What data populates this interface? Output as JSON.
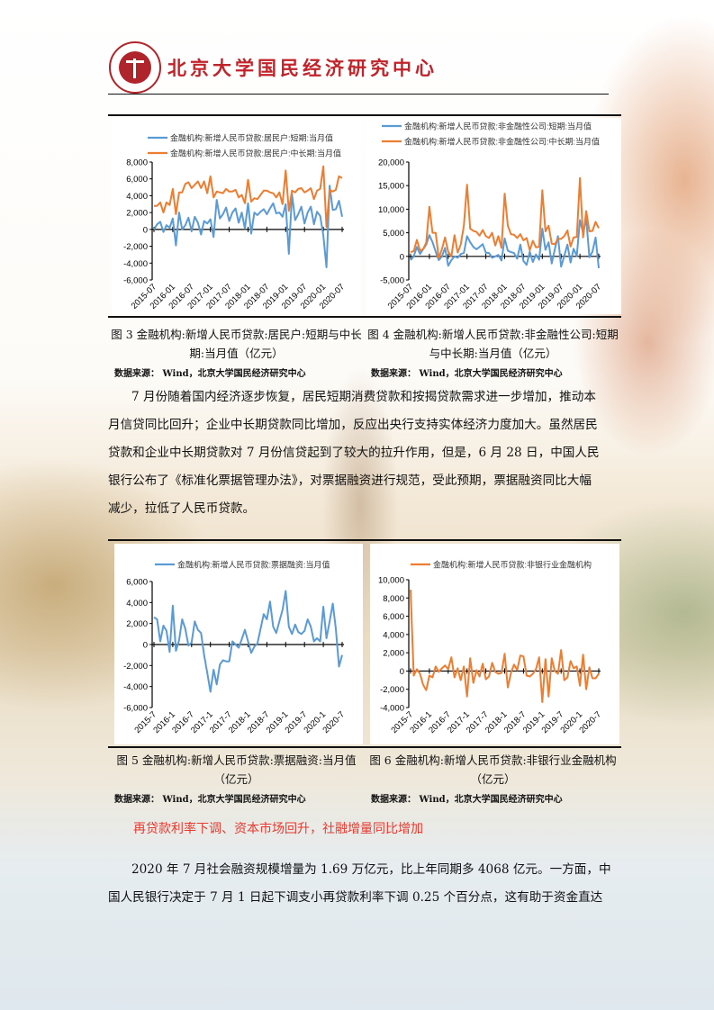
{
  "header": {
    "logo_text": "PEKING UNIVERSITY 1898",
    "brand": "北京大学国民经济研究中心"
  },
  "figures_row1": {
    "fig3": {
      "caption_line1": "图 3  金融机构:新增人民币贷款:居民户:短期与中长",
      "caption_line2": "期:当月值（亿元）",
      "source": "数据来源：  Wind，北京大学国民经济研究中心"
    },
    "fig4": {
      "caption_line1": "图 4  金融机构:新增人民币贷款:非金融性公司:短期",
      "caption_line2": "与中长期:当月值（亿元）",
      "source": "数据来源：  Wind，北京大学国民经济研究中心"
    }
  },
  "paragraph1": [
    "7 月份随着国内经济逐步恢复，居民短期消费贷款和按揭贷款需求进一步增加，推动本",
    "月信贷同比回升；企业中长期贷款同比增加，反应出央行支持实体经济力度加大。虽然居民",
    "贷款和企业中长期贷款对 7 月份信贷起到了较大的拉升作用，但是，6 月 28 日，中国人民",
    "银行公布了《标准化票据管理办法》，对票据融资进行规范，受此预期，票据融资同比大幅",
    "减少，拉低了人民币贷款。"
  ],
  "figures_row2": {
    "fig5": {
      "caption_line1": "图 5  金融机构:新增人民币贷款:票据融资:当月值",
      "caption_line2": "（亿元）",
      "source": "数据来源：  Wind，北京大学国民经济研究中心"
    },
    "fig6": {
      "caption_line1": "图 6  金融机构:新增人民币贷款:非银行业金融机构",
      "caption_line2": "（亿元）",
      "source": "数据来源：  Wind，北京大学国民经济研究中心"
    }
  },
  "section_heading": "再贷款利率下调、资本市场回升，社融增量同比增加",
  "paragraph2": [
    "2020 年 7 月社会融资规模增量为 1.69 万亿元，比上年同期多 4068 亿元。一方面，中",
    "国人民银行决定于 7 月 1 日起下调支小再贷款利率下调 0.25 个百分点，这有助于资金直达"
  ],
  "colors": {
    "blue": "#5b9bd5",
    "orange": "#ed7d31",
    "brand_red": "#c0242a",
    "heading_red": "#e53a2f"
  },
  "chart_data": [
    {
      "type": "line",
      "x_start": "2015-07",
      "x_end": "2020-07",
      "frequency": "monthly",
      "xtick_labels": [
        "2015-07",
        "2016-01",
        "2016-07",
        "2017-01",
        "2017-07",
        "2018-01",
        "2018-07",
        "2019-01",
        "2019-07",
        "2020-01",
        "2020-07"
      ],
      "ylim": [
        -6000,
        8000
      ],
      "yticks": [
        "8,000",
        "6,000",
        "4,000",
        "2,000",
        "0",
        "-2,000",
        "-4,000",
        "-6,000"
      ],
      "legend": "top",
      "series": [
        {
          "name": "金融机构:新增人民币贷款:居民户:短期:当月值",
          "color": "#5b9bd5",
          "values": [
            0,
            600,
            900,
            -300,
            500,
            200,
            1300,
            -1900,
            2000,
            0,
            500,
            1400,
            -200,
            1500,
            800,
            -600,
            1000,
            700,
            1200,
            -900,
            3500,
            1300,
            1800,
            2600,
            1000,
            2000,
            2500,
            800,
            2000,
            100,
            3100,
            -500,
            2000,
            1700,
            2100,
            2400,
            1800,
            2500,
            3100,
            1900,
            2000,
            1500,
            3000,
            -2900,
            4200,
            1100,
            1800,
            2700,
            700,
            2000,
            2700,
            600,
            2100,
            1600,
            -700,
            -4500,
            5200,
            2300,
            2400,
            3400,
            1500
          ]
        },
        {
          "name": "金融机构:新增人民币贷款:居民户:中长期:当月值",
          "color": "#ed7d31",
          "values": [
            2800,
            2800,
            3200,
            2000,
            3200,
            2900,
            4800,
            1800,
            4400,
            4400,
            5400,
            5600,
            4900,
            5300,
            5700,
            4900,
            5700,
            4300,
            6300,
            3800,
            4500,
            4400,
            4300,
            4800,
            4500,
            4500,
            4700,
            3800,
            4100,
            3100,
            5900,
            3300,
            3700,
            3600,
            4100,
            4600,
            4600,
            4400,
            4300,
            3800,
            4400,
            3000,
            7000,
            2200,
            4600,
            4400,
            4800,
            4900,
            4400,
            4600,
            4900,
            3600,
            4600,
            4800,
            7500,
            300,
            4700,
            4500,
            4700,
            6300,
            6100
          ]
        }
      ]
    },
    {
      "type": "line",
      "x_start": "2015-07",
      "x_end": "2020-07",
      "frequency": "monthly",
      "xtick_labels": [
        "2015-07",
        "2016-01",
        "2016-07",
        "2017-01",
        "2017-07",
        "2018-01",
        "2018-07",
        "2019-01",
        "2019-07",
        "2020-01",
        "2020-07"
      ],
      "ylim": [
        -5000,
        20000
      ],
      "yticks": [
        "20,000",
        "15,000",
        "10,000",
        "5,000",
        "0",
        "-5,000"
      ],
      "legend": "top",
      "series": [
        {
          "name": "金融机构:新增人民币贷款:非金融性公司:短期:当月值",
          "color": "#5b9bd5",
          "values": [
            -800,
            0,
            2000,
            500,
            1500,
            2500,
            4500,
            3000,
            1000,
            -800,
            0,
            1800,
            -2000,
            -800,
            0,
            -300,
            500,
            700,
            4300,
            3000,
            2000,
            1500,
            2000,
            2600,
            800,
            700,
            -300,
            0,
            300,
            -900,
            3800,
            1200,
            900,
            700,
            -500,
            2500,
            -1000,
            -1800,
            1000,
            -1200,
            400,
            -700,
            5900,
            1400,
            3000,
            -1500,
            1500,
            4300,
            -2200,
            100,
            2500,
            -1300,
            1600,
            100,
            7700,
            5000,
            8000,
            -200,
            1000,
            4000,
            -2500
          ]
        },
        {
          "name": "金融机构:新增人民币贷款:非金融性公司:中长期:当月值",
          "color": "#ed7d31",
          "values": [
            900,
            1100,
            3500,
            1200,
            1500,
            2900,
            10500,
            5000,
            5000,
            -400,
            1500,
            4000,
            1000,
            0,
            4500,
            800,
            2500,
            6500,
            15200,
            5900,
            5400,
            5200,
            4400,
            5600,
            4300,
            3900,
            5000,
            2300,
            4300,
            1800,
            13300,
            6500,
            4700,
            4600,
            3900,
            4700,
            3400,
            3900,
            1300,
            3300,
            1900,
            2000,
            14000,
            5300,
            6500,
            2700,
            2600,
            3700,
            3700,
            4300,
            5500,
            2100,
            4000,
            4100,
            16600,
            4000,
            9600,
            5300,
            5400,
            7300,
            6000
          ]
        }
      ]
    },
    {
      "type": "line",
      "x_start": "2015-07",
      "x_end": "2020-07",
      "frequency": "monthly",
      "xtick_labels": [
        "2015-7",
        "2016-1",
        "2016-7",
        "2017-1",
        "2017-7",
        "2018-1",
        "2018-7",
        "2019-1",
        "2019-7",
        "2020-1",
        "2020-7"
      ],
      "ylim": [
        -6000,
        6000
      ],
      "yticks": [
        "6,000",
        "4,000",
        "2,000",
        "0",
        "-2,000",
        "-4,000",
        "-6,000"
      ],
      "legend": "top",
      "series": [
        {
          "name": "金融机构:新增人民币贷款:票据融资:当月值",
          "color": "#5b9bd5",
          "values": [
            2600,
            2400,
            300,
            1800,
            1300,
            -700,
            3700,
            -600,
            400,
            2400,
            1500,
            -100,
            200,
            2200,
            1400,
            1100,
            -1000,
            -2700,
            -4500,
            -2400,
            -3800,
            -1900,
            -1500,
            -1600,
            -1600,
            300,
            0,
            -300,
            500,
            1400,
            300,
            -800,
            -200,
            100,
            1500,
            2900,
            2400,
            4100,
            1700,
            1100,
            2200,
            3300,
            5100,
            1700,
            1000,
            1900,
            1200,
            1000,
            1300,
            2400,
            1700,
            300,
            600,
            300,
            3600,
            600,
            2200,
            3900,
            1500,
            -2100,
            -1000
          ]
        }
      ]
    },
    {
      "type": "line",
      "x_start": "2015-07",
      "x_end": "2020-07",
      "frequency": "monthly",
      "xtick_labels": [
        "2015-7",
        "2016-1",
        "2016-7",
        "2017-1",
        "2017-7",
        "2018-1",
        "2018-7",
        "2019-1",
        "2019-7",
        "2020-1",
        "2020-7"
      ],
      "ylim": [
        -4000,
        10000
      ],
      "yticks": [
        "10,000",
        "8,000",
        "6,000",
        "4,000",
        "2,000",
        "0",
        "-2,000",
        "-4,000"
      ],
      "legend": "top",
      "series": [
        {
          "name": "金融机构:新增人民币贷款:非银行业金融机构",
          "color": "#ed7d31",
          "values": [
            8900,
            -500,
            200,
            -300,
            -1500,
            -2100,
            -500,
            -700,
            500,
            -100,
            300,
            600,
            200,
            1500,
            -700,
            300,
            -1000,
            500,
            -2800,
            1400,
            -1300,
            100,
            -600,
            800,
            -900,
            -600,
            900,
            -100,
            -300,
            -200,
            1900,
            -1800,
            -200,
            700,
            100,
            1700,
            1600,
            -500,
            -600,
            -300,
            200,
            1500,
            -3400,
            1300,
            -2800,
            1400,
            0,
            -300,
            2300,
            -1000,
            -700,
            1100,
            300,
            500,
            -1600,
            1800,
            -2000,
            400,
            -800,
            -800,
            -300
          ]
        }
      ]
    }
  ]
}
